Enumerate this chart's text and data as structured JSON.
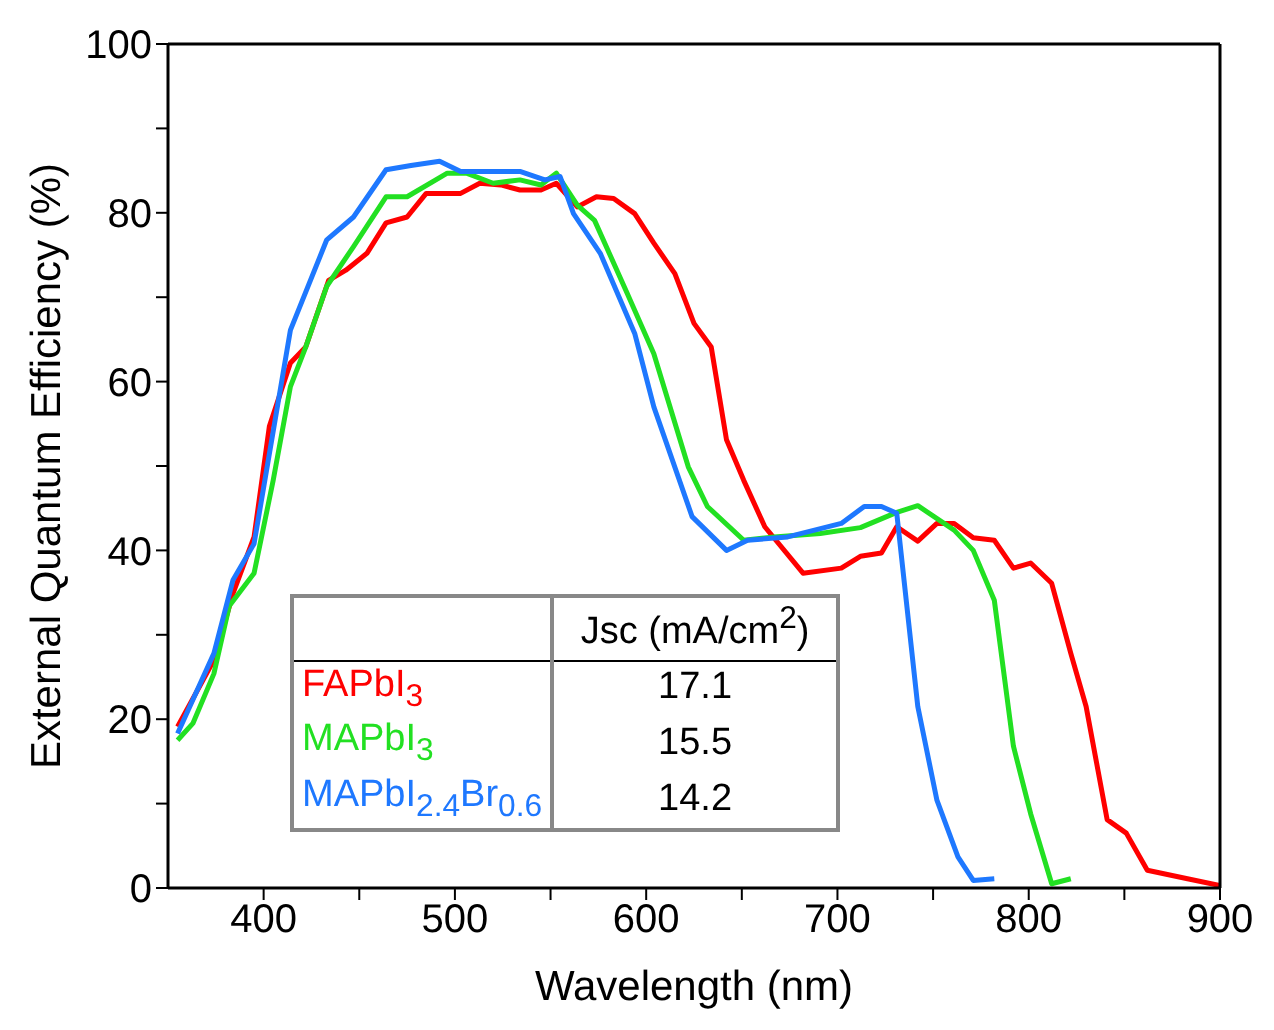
{
  "chart_data": {
    "type": "line",
    "xlabel": "Wavelength (nm)",
    "ylabel": "External Quantum Efficiency (%)",
    "xlim": [
      350,
      900
    ],
    "xticks": [
      400,
      {
        "value": 450,
        "label": null
      },
      500,
      {
        "value": 550,
        "label": null
      },
      600,
      {
        "value": 650,
        "label": null
      },
      700,
      {
        "value": 750,
        "label": null
      },
      800,
      {
        "value": 850,
        "label": null
      },
      900
    ],
    "ylim": [
      0,
      100
    ],
    "yticks": [
      0,
      {
        "value": 10,
        "label": null
      },
      20,
      {
        "value": 30,
        "label": null
      },
      40,
      {
        "value": 50,
        "label": null
      },
      60,
      {
        "value": 70,
        "label": null
      },
      80,
      {
        "value": 90,
        "label": null
      },
      100
    ],
    "legend": "bottom left",
    "marker": "none",
    "line_style": "solid",
    "annotations": [
      "Jsc (mA/cm$^{2}$)",
      "17.1",
      "15.5",
      "14.2"
    ],
    "series": [
      {
        "name": "FAPbI$_{3}$",
        "color": "#ff0000",
        "x": [
          355,
          374,
          384,
          395,
          403,
          414,
          422,
          434,
          443,
          454,
          464,
          475,
          485,
          503,
          513,
          524,
          534,
          545,
          553,
          564,
          574,
          583,
          594,
          604,
          615,
          625,
          634,
          642,
          651,
          662,
          682,
          702,
          712,
          723,
          731,
          742,
          752,
          761,
          771,
          782,
          792,
          801,
          812,
          822,
          830,
          841,
          851,
          862,
          883,
          900
        ],
        "values": [
          19.1,
          27,
          34.9,
          41.6,
          54.7,
          62.2,
          64.1,
          72,
          73.2,
          75.2,
          78.8,
          79.5,
          82.3,
          82.3,
          83.5,
          83.3,
          82.7,
          82.7,
          83.5,
          80.7,
          81.9,
          81.7,
          79.9,
          76.4,
          72.8,
          66.9,
          64.1,
          53.1,
          48.3,
          42.8,
          37.3,
          37.9,
          39.3,
          39.7,
          42.8,
          41.1,
          43.2,
          43.2,
          41.5,
          41.2,
          37.9,
          38.5,
          36.1,
          27.8,
          21.5,
          8.1,
          6.5,
          2.1,
          1.1,
          0.3
        ]
      },
      {
        "name": "MAPbI$_{3}$",
        "color": "#22e022",
        "x": [
          355,
          363,
          374,
          382,
          395,
          405,
          414,
          422,
          433,
          447,
          464,
          475,
          496,
          506,
          520,
          534,
          545,
          553,
          564,
          573,
          590,
          604,
          622,
          632,
          651,
          667,
          691,
          712,
          731,
          742,
          761,
          771,
          782,
          792,
          801,
          812,
          822
        ],
        "values": [
          17.5,
          19.5,
          25.4,
          33.4,
          37.3,
          48.3,
          59.4,
          64.1,
          71.3,
          76,
          81.9,
          81.9,
          84.7,
          84.7,
          83.5,
          83.9,
          83.3,
          84.7,
          80.9,
          79.1,
          70.5,
          63.3,
          49.9,
          45.2,
          41.2,
          41.6,
          42,
          42.7,
          44.5,
          45.3,
          42.4,
          40,
          34.1,
          16.8,
          8.8,
          0.5,
          1.1
        ]
      },
      {
        "name": "MAPbI$_{2.4}$Br$_{0.6}$",
        "color": "#1e78ff",
        "x": [
          355,
          374,
          384,
          395,
          414,
          433,
          447,
          464,
          477,
          492,
          503,
          534,
          547,
          555,
          562,
          576,
          594,
          604,
          624,
          642,
          653,
          674,
          702,
          714,
          723,
          731,
          742,
          752,
          763,
          771,
          782
        ],
        "values": [
          18.3,
          27.8,
          36.5,
          40.8,
          66.1,
          76.8,
          79.5,
          85.1,
          85.6,
          86.1,
          84.9,
          84.9,
          83.9,
          84.3,
          79.9,
          75.2,
          65.7,
          57,
          44,
          40,
          41.2,
          41.6,
          43.2,
          45.2,
          45.2,
          44.4,
          21.5,
          10.4,
          3.7,
          0.9,
          1.1
        ]
      }
    ]
  }
}
